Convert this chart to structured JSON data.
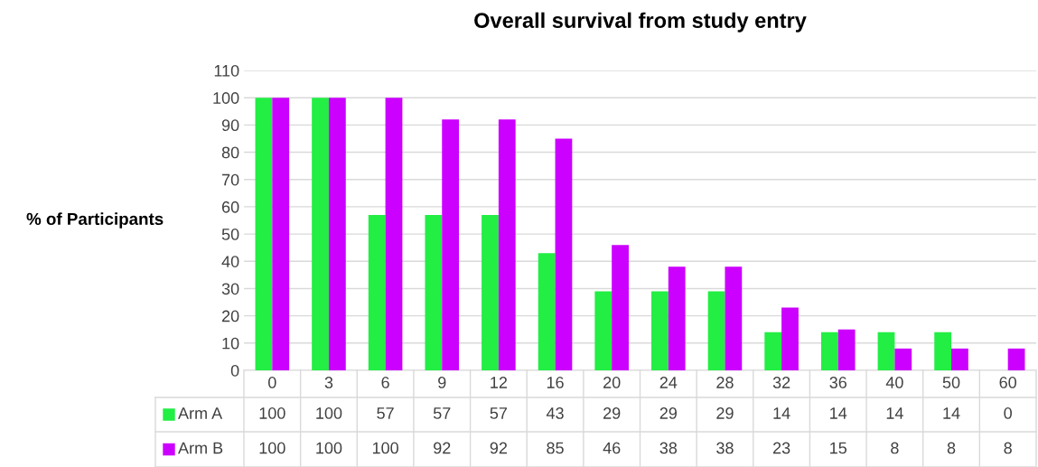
{
  "chart_data": {
    "type": "bar",
    "title": "Overall survival from study entry",
    "ylabel": "% of Participants",
    "categories": [
      "0",
      "3",
      "6",
      "9",
      "12",
      "16",
      "20",
      "24",
      "28",
      "32",
      "36",
      "40",
      "50",
      "60"
    ],
    "series": [
      {
        "name": "Arm A",
        "color": "#22ee44",
        "values": [
          100,
          100,
          57,
          57,
          57,
          43,
          29,
          29,
          29,
          14,
          14,
          14,
          14,
          0
        ]
      },
      {
        "name": "Arm B",
        "color": "#cc00ff",
        "values": [
          100,
          100,
          100,
          92,
          92,
          85,
          46,
          38,
          38,
          23,
          15,
          8,
          8,
          8
        ]
      }
    ],
    "ylim": [
      0,
      110
    ],
    "yticks": [
      0,
      10,
      20,
      30,
      40,
      50,
      60,
      70,
      80,
      90,
      100,
      110
    ],
    "grid": "y",
    "legend": "bottom",
    "data_labels": true
  }
}
